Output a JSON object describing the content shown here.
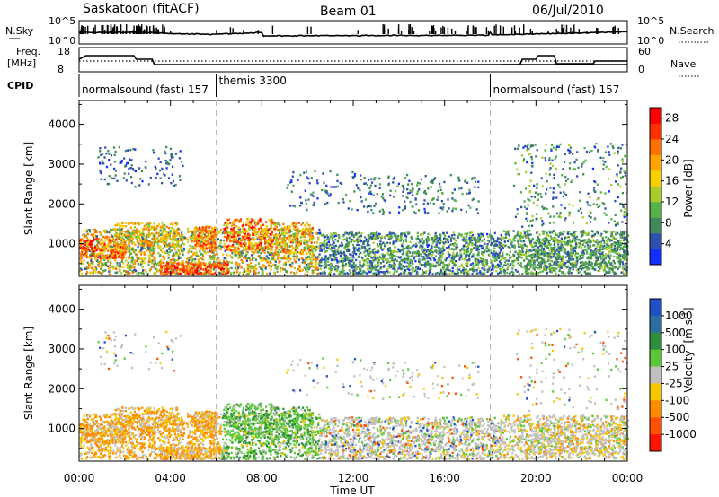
{
  "header": {
    "left": "Saskatoon (fitACF)",
    "center": "Beam 01",
    "right": "06/Jul/2010"
  },
  "noise": {
    "left_label": "N.Sky",
    "right_label": "N.Search",
    "left_ticks": [
      "10^5",
      "10^0"
    ],
    "right_ticks": [
      "10^5",
      "10^0"
    ]
  },
  "freq": {
    "left_label_1": "Freq.",
    "left_label_2": "[MHz]",
    "right_label": "Nave",
    "left_ticks": [
      "18",
      "8"
    ],
    "right_ticks": [
      "60",
      "0"
    ]
  },
  "cpid": {
    "label": "CPID",
    "segments": [
      {
        "text": "normalsound (fast) 157",
        "start_hour": 0
      },
      {
        "text": "themis 3300",
        "start_hour": 6
      },
      {
        "text": "normalsound (fast) 157",
        "start_hour": 18
      }
    ]
  },
  "axes": {
    "ylabel": "Slant Range [km]",
    "xlabel": "Time UT",
    "y_ticks": [
      "1000",
      "2000",
      "3000",
      "4000"
    ],
    "x_ticks": [
      "00:00",
      "04:00",
      "08:00",
      "12:00",
      "16:00",
      "20:00",
      "00:00"
    ]
  },
  "chart_data": [
    {
      "type": "heatmap",
      "title": "",
      "quantity": "Power [dB]",
      "xlim": [
        0,
        24
      ],
      "ylim": [
        180,
        4600
      ],
      "colorbar_title": "Power [dB]",
      "colorbar_ticks": [
        "4",
        "8",
        "12",
        "16",
        "20",
        "24",
        "28"
      ],
      "colorbar_colors": [
        "#1030ff",
        "#3050b0",
        "#3f8a58",
        "#55b24a",
        "#a8cc28",
        "#f6d000",
        "#ffa400",
        "#ff7000",
        "#ff3000",
        "#ff0000"
      ],
      "value_range": [
        0,
        30
      ]
    },
    {
      "type": "heatmap",
      "title": "",
      "quantity": "Velocity [m s^-1]",
      "xlim": [
        0,
        24
      ],
      "ylim": [
        180,
        4600
      ],
      "colorbar_title": "Velocity",
      "colorbar_unit": "[m s",
      "colorbar_unit_sup": "-1",
      "colorbar_unit_end": "]",
      "colorbar_ticks": [
        "1000",
        "500",
        "100",
        "25",
        "-25",
        "-100",
        "-500",
        "-1000"
      ],
      "colorbar_colors": [
        "#2050c8",
        "#2d6ea0",
        "#2e8e3c",
        "#5bc83a",
        "#c0c0c0",
        "#f6c700",
        "#ff8c00",
        "#ff5000",
        "#ff1400"
      ]
    }
  ]
}
